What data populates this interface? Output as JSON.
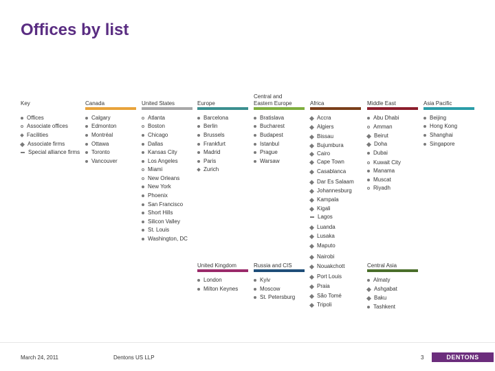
{
  "title": "Offices by list",
  "footer": {
    "date": "March 24, 2011",
    "company": "Dentons US LLP",
    "page": "3",
    "logo_text": "DENTONS"
  },
  "colors": {
    "title": "#5a2d82",
    "key": "#7a7a7a",
    "canada": "#e8a33b",
    "united_states": "#a8a8a8",
    "europe": "#3b8f8f",
    "central_eastern_europe": "#7fae3e",
    "africa": "#7a3f1a",
    "middle_east": "#8c1d2b",
    "asia_pacific": "#2a9da8",
    "united_kingdom": "#9a2a6a",
    "russia_cis": "#1f4e79",
    "central_asia": "#4a6e2a"
  },
  "key": {
    "header": "Key",
    "items": [
      {
        "label": "Offices",
        "icon": "circle-filled"
      },
      {
        "label": "Associate offices",
        "icon": "circle-outline"
      },
      {
        "label": "Facilities",
        "icon": "square"
      },
      {
        "label": "Associate firms",
        "icon": "diamond"
      },
      {
        "label": "Special alliance firms",
        "icon": "arrow"
      }
    ]
  },
  "canada": {
    "header": "Canada",
    "items": [
      "Calgary",
      "Edmonton",
      "Montréal",
      "Ottawa",
      "Toronto",
      "Vancouver"
    ]
  },
  "united_states": {
    "header": "United States",
    "items": [
      "Atlanta",
      "Boston",
      "Chicago",
      "Dallas",
      "Kansas City",
      "Los Angeles",
      "Miami",
      "New Orleans",
      "New York",
      "Phoenix",
      "San Francisco",
      "Short Hills",
      "Silicon Valley",
      "St. Louis",
      "Washington, DC"
    ]
  },
  "europe": {
    "header": "Europe",
    "items": [
      "Barcelona",
      "Berlin",
      "Brussels",
      "Frankfurt",
      "Madrid",
      "Paris",
      "Zurich"
    ]
  },
  "central_eastern_europe": {
    "header": "Central and Eastern Europe",
    "items": [
      "Bratislava",
      "Bucharest",
      "Budapest",
      "Istanbul",
      "Prague",
      "Warsaw"
    ]
  },
  "africa": {
    "header": "Africa",
    "items": [
      "Accra",
      "Algiers",
      "Bissau",
      "Bujumbura",
      "Cairo",
      "Cape Town",
      "Casablanca",
      "Dar Es Salaam",
      "Johannesburg",
      "Kampala",
      "Kigali",
      "Lagos",
      "Luanda",
      "Lusaka",
      "Maputo",
      "Nairobi",
      "Nouakchott",
      "Port Louis",
      "Praia",
      "São Tomé",
      "Tripoli"
    ]
  },
  "middle_east": {
    "header": "Middle East",
    "items": [
      "Abu Dhabi",
      "Amman",
      "Beirut",
      "Doha",
      "Dubai",
      "Kuwait City",
      "Manama",
      "Muscat",
      "Riyadh"
    ]
  },
  "asia_pacific": {
    "header": "Asia Pacific",
    "items": [
      "Beijing",
      "Hong Kong",
      "Shanghai",
      "Singapore"
    ]
  },
  "united_kingdom": {
    "header": "United Kingdom",
    "items": [
      "London",
      "Milton Keynes"
    ]
  },
  "russia_cis": {
    "header": "Russia and CIS",
    "items": [
      "Kyiv",
      "Moscow",
      "St. Petersburg"
    ]
  },
  "central_asia": {
    "header": "Central Asia",
    "items": [
      "Almaty",
      "Ashgabat",
      "Baku",
      "Tashkent"
    ]
  }
}
